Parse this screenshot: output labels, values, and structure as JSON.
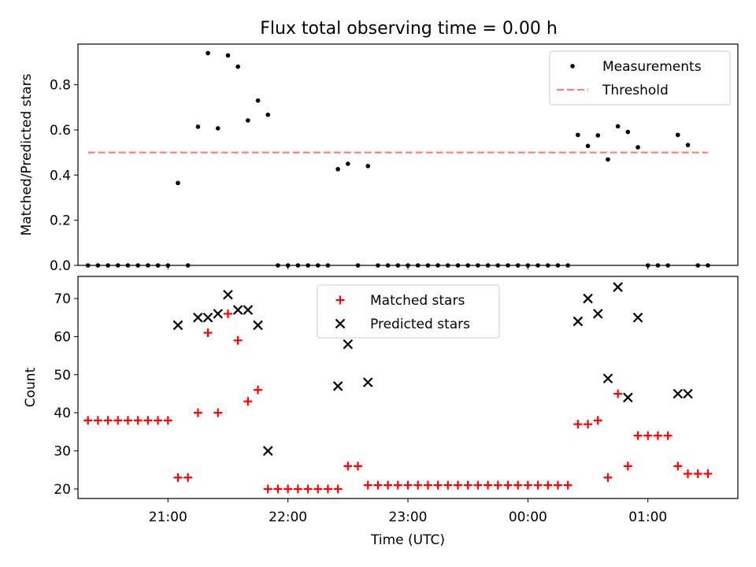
{
  "title": "Flux total observing time = 0.00 h",
  "chart_data": [
    {
      "type": "scatter",
      "panel": "top",
      "ylabel": "Matched/Predicted stars",
      "xlabel": "",
      "xlim": [
        "20:15",
        "01:45"
      ],
      "ylim": [
        0,
        0.98
      ],
      "yticks": [
        "0.0",
        "0.2",
        "0.4",
        "0.6",
        "0.8"
      ],
      "grid": false,
      "legend_position": "top-right",
      "legend": [
        "Measurements",
        "Threshold"
      ],
      "series": [
        {
          "name": "Measurements",
          "marker": "dot",
          "color": "#000000",
          "points": [
            [
              "20:20",
              0
            ],
            [
              "20:25",
              0
            ],
            [
              "20:30",
              0
            ],
            [
              "20:35",
              0
            ],
            [
              "20:40",
              0
            ],
            [
              "20:45",
              0
            ],
            [
              "20:50",
              0
            ],
            [
              "20:55",
              0
            ],
            [
              "21:00",
              0
            ],
            [
              "21:05",
              0.365
            ],
            [
              "21:10",
              0
            ],
            [
              "21:15",
              0.614
            ],
            [
              "21:20",
              0.94
            ],
            [
              "21:25",
              0.607
            ],
            [
              "21:30",
              0.93
            ],
            [
              "21:35",
              0.88
            ],
            [
              "21:40",
              0.642
            ],
            [
              "21:45",
              0.73
            ],
            [
              "21:50",
              0.667
            ],
            [
              "21:55",
              0
            ],
            [
              "22:00",
              0
            ],
            [
              "22:05",
              0
            ],
            [
              "22:10",
              0
            ],
            [
              "22:15",
              0
            ],
            [
              "22:20",
              0
            ],
            [
              "22:25",
              0.426
            ],
            [
              "22:30",
              0.45
            ],
            [
              "22:35",
              0
            ],
            [
              "22:40",
              0.44
            ],
            [
              "22:45",
              0
            ],
            [
              "22:50",
              0
            ],
            [
              "22:55",
              0
            ],
            [
              "23:00",
              0
            ],
            [
              "23:05",
              0
            ],
            [
              "23:10",
              0
            ],
            [
              "23:15",
              0
            ],
            [
              "23:20",
              0
            ],
            [
              "23:25",
              0
            ],
            [
              "23:30",
              0
            ],
            [
              "23:35",
              0
            ],
            [
              "23:40",
              0
            ],
            [
              "23:45",
              0
            ],
            [
              "23:50",
              0
            ],
            [
              "23:55",
              0
            ],
            [
              "00:00",
              0
            ],
            [
              "00:05",
              0
            ],
            [
              "00:10",
              0
            ],
            [
              "00:15",
              0
            ],
            [
              "00:20",
              0
            ],
            [
              "00:25",
              0.578
            ],
            [
              "00:30",
              0.529
            ],
            [
              "00:35",
              0.576
            ],
            [
              "00:40",
              0.469
            ],
            [
              "00:45",
              0.616
            ],
            [
              "00:50",
              0.591
            ],
            [
              "00:55",
              0.523
            ],
            [
              "01:00",
              0
            ],
            [
              "01:05",
              0
            ],
            [
              "01:10",
              0
            ],
            [
              "01:15",
              0.578
            ],
            [
              "01:20",
              0.533
            ],
            [
              "01:25",
              0
            ],
            [
              "01:30",
              0
            ]
          ]
        },
        {
          "name": "Threshold",
          "style": "dashed",
          "color": "#ff7f7f",
          "points": [
            [
              "20:20",
              0.5
            ],
            [
              "01:30",
              0.5
            ]
          ]
        }
      ]
    },
    {
      "type": "scatter",
      "panel": "bottom",
      "ylabel": "Count",
      "xlabel": "Time (UTC)",
      "xlim": [
        "20:15",
        "01:45"
      ],
      "ylim": [
        17.5,
        75.8
      ],
      "yticks": [
        "20",
        "30",
        "40",
        "50",
        "60",
        "70"
      ],
      "xticks": [
        "21:00",
        "22:00",
        "23:00",
        "00:00",
        "01:00"
      ],
      "grid": false,
      "legend_position": "top-center",
      "legend": [
        "Matched stars",
        "Predicted stars"
      ],
      "series": [
        {
          "name": "Matched stars",
          "marker": "plus",
          "color": "#ff0000",
          "points": [
            [
              "20:20",
              38
            ],
            [
              "20:25",
              38
            ],
            [
              "20:30",
              38
            ],
            [
              "20:35",
              38
            ],
            [
              "20:40",
              38
            ],
            [
              "20:45",
              38
            ],
            [
              "20:50",
              38
            ],
            [
              "20:55",
              38
            ],
            [
              "21:00",
              38
            ],
            [
              "21:05",
              23
            ],
            [
              "21:10",
              23
            ],
            [
              "21:15",
              40
            ],
            [
              "21:20",
              61
            ],
            [
              "21:25",
              40
            ],
            [
              "21:30",
              66
            ],
            [
              "21:35",
              59
            ],
            [
              "21:40",
              43
            ],
            [
              "21:45",
              46
            ],
            [
              "21:50",
              20
            ],
            [
              "21:55",
              20
            ],
            [
              "22:00",
              20
            ],
            [
              "22:05",
              20
            ],
            [
              "22:10",
              20
            ],
            [
              "22:15",
              20
            ],
            [
              "22:20",
              20
            ],
            [
              "22:25",
              20
            ],
            [
              "22:30",
              26
            ],
            [
              "22:35",
              26
            ],
            [
              "22:40",
              21
            ],
            [
              "22:45",
              21
            ],
            [
              "22:50",
              21
            ],
            [
              "22:55",
              21
            ],
            [
              "23:00",
              21
            ],
            [
              "23:05",
              21
            ],
            [
              "23:10",
              21
            ],
            [
              "23:15",
              21
            ],
            [
              "23:20",
              21
            ],
            [
              "23:25",
              21
            ],
            [
              "23:30",
              21
            ],
            [
              "23:35",
              21
            ],
            [
              "23:40",
              21
            ],
            [
              "23:45",
              21
            ],
            [
              "23:50",
              21
            ],
            [
              "23:55",
              21
            ],
            [
              "00:00",
              21
            ],
            [
              "00:05",
              21
            ],
            [
              "00:10",
              21
            ],
            [
              "00:15",
              21
            ],
            [
              "00:20",
              21
            ],
            [
              "00:25",
              37
            ],
            [
              "00:30",
              37
            ],
            [
              "00:35",
              38
            ],
            [
              "00:40",
              23
            ],
            [
              "00:45",
              45
            ],
            [
              "00:50",
              26
            ],
            [
              "00:55",
              34
            ],
            [
              "01:00",
              34
            ],
            [
              "01:05",
              34
            ],
            [
              "01:10",
              34
            ],
            [
              "01:15",
              26
            ],
            [
              "01:20",
              24
            ],
            [
              "01:25",
              24
            ],
            [
              "01:30",
              24
            ]
          ]
        },
        {
          "name": "Predicted stars",
          "marker": "x",
          "color": "#000000",
          "points": [
            [
              "21:05",
              63
            ],
            [
              "21:15",
              65
            ],
            [
              "21:20",
              65
            ],
            [
              "21:25",
              66
            ],
            [
              "21:30",
              71
            ],
            [
              "21:35",
              67
            ],
            [
              "21:40",
              67
            ],
            [
              "21:45",
              63
            ],
            [
              "21:50",
              30
            ],
            [
              "22:25",
              47
            ],
            [
              "22:30",
              58
            ],
            [
              "22:40",
              48
            ],
            [
              "00:25",
              64
            ],
            [
              "00:30",
              70
            ],
            [
              "00:35",
              66
            ],
            [
              "00:40",
              49
            ],
            [
              "00:45",
              73
            ],
            [
              "00:50",
              44
            ],
            [
              "00:55",
              65
            ],
            [
              "01:15",
              45
            ],
            [
              "01:20",
              45
            ]
          ]
        }
      ]
    }
  ]
}
